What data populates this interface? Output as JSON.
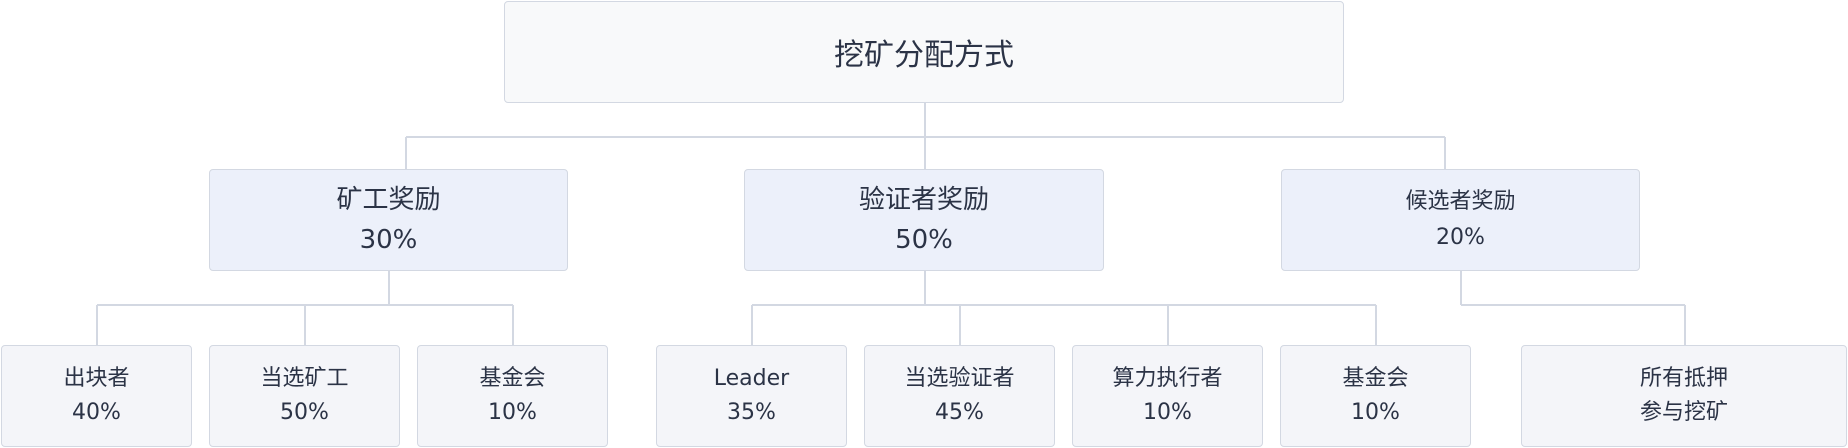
{
  "root": {
    "label": "挖矿分配方式"
  },
  "groups": [
    {
      "label": "矿工奖励",
      "value": "30%",
      "children": [
        {
          "label": "出块者",
          "value": "40%"
        },
        {
          "label": "当选矿工",
          "value": "50%"
        },
        {
          "label": "基金会",
          "value": "10%"
        }
      ]
    },
    {
      "label": "验证者奖励",
      "value": "50%",
      "children": [
        {
          "label": "Leader",
          "value": "35%"
        },
        {
          "label": "当选验证者",
          "value": "45%"
        },
        {
          "label": "算力执行者",
          "value": "10%"
        },
        {
          "label": "基金会",
          "value": "10%"
        }
      ]
    },
    {
      "label": "候选者奖励",
      "value": "20%",
      "children": [
        {
          "label": "所有抵押",
          "value": "参与挖矿"
        }
      ]
    }
  ],
  "colors": {
    "line": "#d3d8e2",
    "root_fill": "#f8f9fa",
    "group_fill": "#ecf0fa",
    "leaf_fill": "#f4f5f9",
    "text": "#2b3346"
  }
}
